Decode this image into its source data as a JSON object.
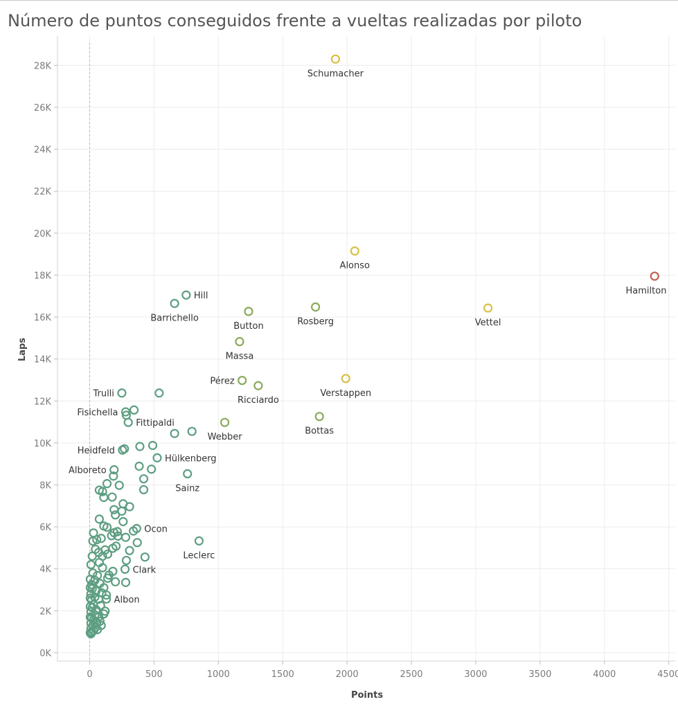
{
  "chart_data": {
    "type": "scatter",
    "title": "Número de puntos conseguidos frente a vueltas realizadas por piloto",
    "xlabel": "Points",
    "ylabel": "Laps",
    "xlim": [
      -250,
      4550
    ],
    "ylim": [
      -400,
      29400
    ],
    "x_ticks": [
      0,
      500,
      1000,
      1500,
      2000,
      2500,
      3000,
      3500,
      4000,
      4500
    ],
    "x_tick_labels": [
      "0",
      "500",
      "1000",
      "1500",
      "2000",
      "2500",
      "3000",
      "3500",
      "4000",
      "4500"
    ],
    "y_ticks": [
      0,
      2000,
      4000,
      6000,
      8000,
      10000,
      12000,
      14000,
      16000,
      18000,
      20000,
      22000,
      24000,
      26000,
      28000
    ],
    "y_tick_labels": [
      "0K",
      "2K",
      "4K",
      "6K",
      "8K",
      "10K",
      "12K",
      "14K",
      "16K",
      "18K",
      "20K",
      "22K",
      "24K",
      "26K",
      "28K"
    ],
    "grid": true,
    "legend": "none",
    "colors": {
      "low": "#5e9e82",
      "mid": "#8aaa5a",
      "high": "#d8c048",
      "top": "#c0604e"
    },
    "labeled_points": [
      {
        "name": "Schumacher",
        "x": 1910,
        "y": 28300,
        "color": "high",
        "pos": "below"
      },
      {
        "name": "Alonso",
        "x": 2060,
        "y": 19150,
        "color": "high",
        "pos": "below"
      },
      {
        "name": "Hamilton",
        "x": 4390,
        "y": 17950,
        "color": "top",
        "pos": "below"
      },
      {
        "name": "Vettel",
        "x": 3095,
        "y": 16430,
        "color": "high",
        "pos": "below"
      },
      {
        "name": "Rosberg",
        "x": 1755,
        "y": 16480,
        "color": "mid",
        "pos": "below"
      },
      {
        "name": "Button",
        "x": 1235,
        "y": 16270,
        "color": "mid",
        "pos": "below"
      },
      {
        "name": "Hill",
        "x": 750,
        "y": 17050,
        "color": "low",
        "pos": "right"
      },
      {
        "name": "Barrichello",
        "x": 660,
        "y": 16650,
        "color": "low",
        "pos": "below"
      },
      {
        "name": "Massa",
        "x": 1165,
        "y": 14830,
        "color": "mid",
        "pos": "below"
      },
      {
        "name": "Pérez",
        "x": 1185,
        "y": 12980,
        "color": "mid",
        "pos": "left"
      },
      {
        "name": "Ricciardo",
        "x": 1310,
        "y": 12730,
        "color": "mid",
        "pos": "below"
      },
      {
        "name": "Verstappen",
        "x": 1990,
        "y": 13070,
        "color": "high",
        "pos": "below"
      },
      {
        "name": "Bottas",
        "x": 1785,
        "y": 11260,
        "color": "mid",
        "pos": "below"
      },
      {
        "name": "Trulli",
        "x": 250,
        "y": 12380,
        "color": "low",
        "pos": "left"
      },
      {
        "name": "Fisichella",
        "x": 280,
        "y": 11480,
        "color": "low",
        "pos": "left"
      },
      {
        "name": "Fittipaldi",
        "x": 300,
        "y": 10980,
        "color": "low",
        "pos": "right"
      },
      {
        "name": "Webber",
        "x": 1050,
        "y": 10980,
        "color": "mid",
        "pos": "below"
      },
      {
        "name": "Heidfeld",
        "x": 255,
        "y": 9660,
        "color": "low",
        "pos": "left"
      },
      {
        "name": "Hülkenberg",
        "x": 525,
        "y": 9290,
        "color": "low",
        "pos": "right"
      },
      {
        "name": "Alboreto",
        "x": 190,
        "y": 8720,
        "color": "low",
        "pos": "left"
      },
      {
        "name": "Sainz",
        "x": 760,
        "y": 8530,
        "color": "low",
        "pos": "below"
      },
      {
        "name": "Ocon",
        "x": 365,
        "y": 5920,
        "color": "low",
        "pos": "right"
      },
      {
        "name": "Leclerc",
        "x": 850,
        "y": 5330,
        "color": "low",
        "pos": "below"
      },
      {
        "name": "Clark",
        "x": 275,
        "y": 3980,
        "color": "low",
        "pos": "right"
      },
      {
        "name": "Albon",
        "x": 130,
        "y": 2560,
        "color": "low",
        "pos": "right"
      }
    ],
    "unlabeled_points": [
      [
        540,
        12380
      ],
      [
        345,
        11570
      ],
      [
        285,
        11320
      ],
      [
        660,
        10450
      ],
      [
        795,
        10550
      ],
      [
        390,
        9830
      ],
      [
        490,
        9880
      ],
      [
        270,
        9720
      ],
      [
        385,
        8890
      ],
      [
        480,
        8750
      ],
      [
        420,
        8290
      ],
      [
        420,
        7770
      ],
      [
        185,
        8420
      ],
      [
        230,
        7980
      ],
      [
        135,
        8060
      ],
      [
        75,
        7750
      ],
      [
        100,
        7680
      ],
      [
        110,
        7400
      ],
      [
        175,
        7420
      ],
      [
        260,
        7100
      ],
      [
        310,
        6960
      ],
      [
        190,
        6820
      ],
      [
        250,
        6750
      ],
      [
        200,
        6570
      ],
      [
        260,
        6250
      ],
      [
        75,
        6370
      ],
      [
        110,
        6040
      ],
      [
        135,
        5980
      ],
      [
        30,
        5710
      ],
      [
        190,
        5720
      ],
      [
        215,
        5770
      ],
      [
        170,
        5580
      ],
      [
        220,
        5560
      ],
      [
        280,
        5500
      ],
      [
        340,
        5800
      ],
      [
        370,
        5250
      ],
      [
        25,
        5320
      ],
      [
        55,
        5390
      ],
      [
        90,
        5450
      ],
      [
        205,
        5080
      ],
      [
        180,
        4980
      ],
      [
        310,
        4870
      ],
      [
        430,
        4560
      ],
      [
        285,
        4400
      ],
      [
        120,
        4900
      ],
      [
        100,
        4600
      ],
      [
        140,
        4700
      ],
      [
        45,
        4930
      ],
      [
        70,
        4780
      ],
      [
        20,
        4600
      ],
      [
        75,
        4300
      ],
      [
        10,
        4200
      ],
      [
        100,
        4050
      ],
      [
        180,
        3880
      ],
      [
        25,
        3800
      ],
      [
        60,
        3680
      ],
      [
        140,
        3550
      ],
      [
        150,
        3700
      ],
      [
        200,
        3380
      ],
      [
        280,
        3350
      ],
      [
        40,
        3450
      ],
      [
        80,
        3300
      ],
      [
        15,
        3250
      ],
      [
        110,
        3100
      ],
      [
        20,
        3050
      ],
      [
        50,
        2950
      ],
      [
        95,
        2850
      ],
      [
        130,
        2750
      ],
      [
        10,
        2800
      ],
      [
        40,
        2650
      ],
      [
        70,
        2550
      ],
      [
        15,
        2500
      ],
      [
        30,
        2300
      ],
      [
        85,
        2250
      ],
      [
        20,
        2150
      ],
      [
        120,
        1980
      ],
      [
        110,
        1850
      ],
      [
        50,
        2050
      ],
      [
        10,
        1950
      ],
      [
        40,
        1800
      ],
      [
        70,
        1700
      ],
      [
        15,
        1650
      ],
      [
        30,
        1550
      ],
      [
        55,
        1450
      ],
      [
        10,
        1400
      ],
      [
        25,
        1300
      ],
      [
        45,
        1200
      ],
      [
        10,
        1150
      ],
      [
        30,
        1050
      ],
      [
        15,
        1000
      ],
      [
        5,
        950
      ],
      [
        10,
        900
      ],
      [
        5,
        1700
      ],
      [
        5,
        2200
      ],
      [
        5,
        2600
      ],
      [
        5,
        3100
      ],
      [
        5,
        3500
      ],
      [
        60,
        1100
      ],
      [
        80,
        1500
      ],
      [
        90,
        1300
      ]
    ]
  }
}
